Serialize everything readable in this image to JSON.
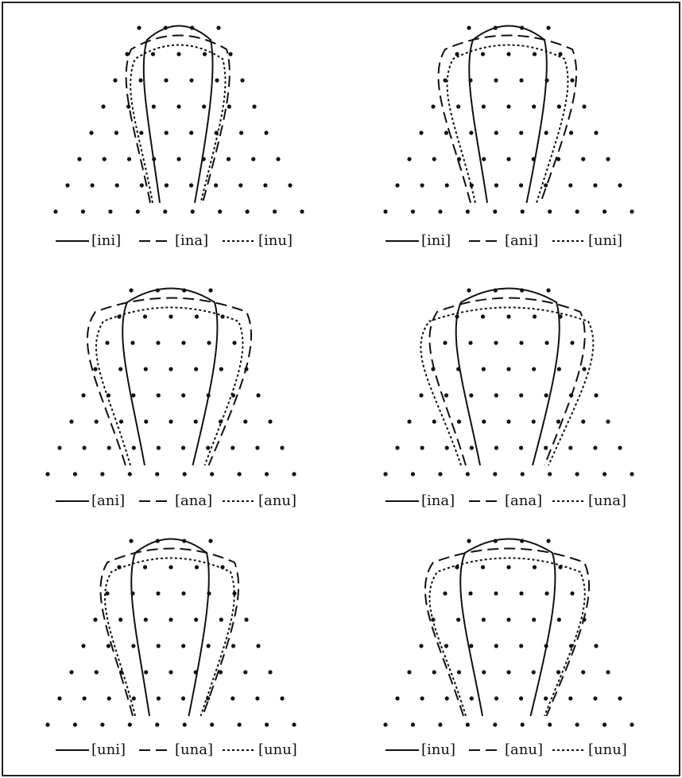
{
  "panels": [
    {
      "legend": [
        "[ini]",
        "[ina]",
        "[inu]"
      ]
    },
    {
      "legend": [
        "[ini]",
        "[ani]",
        "[uni]"
      ]
    },
    {
      "legend": [
        "[ani]",
        "[ana]",
        "[anu]"
      ]
    },
    {
      "legend": [
        "[ina]",
        "[ana]",
        "[una]"
      ]
    },
    {
      "legend": [
        "[uni]",
        "[una]",
        "[unu]"
      ]
    },
    {
      "legend": [
        "[inu]",
        "[anu]",
        "[unu]"
      ]
    }
  ]
}
